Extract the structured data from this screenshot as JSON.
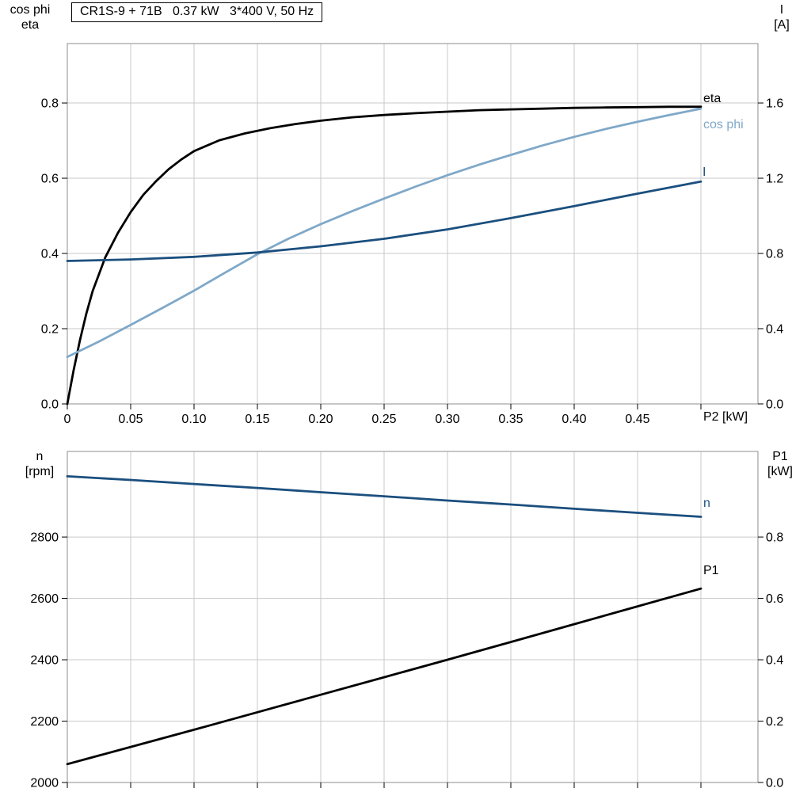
{
  "colors": {
    "black": "#000000",
    "dark_blue": "#1b4f7e",
    "light_blue": "#7fa8c8",
    "grid": "#c9c9c9",
    "frame": "#8c8c8c"
  },
  "chart_data": [
    {
      "type": "line",
      "title": "CR1S-9 + 71B   0.37 kW   3*400 V, 50 Hz",
      "xlabel": "P2 [kW]",
      "x": {
        "min": 0,
        "max": 0.545,
        "ticks": [
          {
            "v": 0,
            "t": "0"
          },
          {
            "v": 0.05,
            "t": "0.05"
          },
          {
            "v": 0.1,
            "t": "0.10"
          },
          {
            "v": 0.15,
            "t": "0.15"
          },
          {
            "v": 0.2,
            "t": "0.20"
          },
          {
            "v": 0.25,
            "t": "0.25"
          },
          {
            "v": 0.3,
            "t": "0.30"
          },
          {
            "v": 0.35,
            "t": "0.35"
          },
          {
            "v": 0.4,
            "t": "0.40"
          },
          {
            "v": 0.45,
            "t": "0.45"
          },
          {
            "v": 0.5,
            "t": ""
          }
        ]
      },
      "y_left": {
        "label_lines": [
          "cos phi",
          "eta"
        ],
        "min": 0,
        "max": 0.958,
        "ticks": [
          {
            "v": 0.0,
            "t": "0.0"
          },
          {
            "v": 0.2,
            "t": "0.2"
          },
          {
            "v": 0.4,
            "t": "0.4"
          },
          {
            "v": 0.6,
            "t": "0.6"
          },
          {
            "v": 0.8,
            "t": "0.8"
          }
        ]
      },
      "y_right": {
        "label_lines": [
          "I",
          "[A]"
        ],
        "min": 0,
        "max": 1.916,
        "ticks": [
          {
            "v": 0.0,
            "t": "0.0"
          },
          {
            "v": 0.4,
            "t": "0.4"
          },
          {
            "v": 0.8,
            "t": "0.8"
          },
          {
            "v": 1.2,
            "t": "1.2"
          },
          {
            "v": 1.6,
            "t": "1.6"
          }
        ]
      },
      "series": [
        {
          "name": "eta",
          "axis": "left",
          "color": "black",
          "points": [
            [
              0,
              0
            ],
            [
              0.005,
              0.09
            ],
            [
              0.01,
              0.17
            ],
            [
              0.015,
              0.24
            ],
            [
              0.02,
              0.3
            ],
            [
              0.03,
              0.39
            ],
            [
              0.04,
              0.455
            ],
            [
              0.05,
              0.51
            ],
            [
              0.06,
              0.556
            ],
            [
              0.07,
              0.592
            ],
            [
              0.08,
              0.624
            ],
            [
              0.09,
              0.65
            ],
            [
              0.1,
              0.672
            ],
            [
              0.12,
              0.701
            ],
            [
              0.14,
              0.719
            ],
            [
              0.16,
              0.733
            ],
            [
              0.18,
              0.744
            ],
            [
              0.2,
              0.753
            ],
            [
              0.225,
              0.762
            ],
            [
              0.25,
              0.768
            ],
            [
              0.275,
              0.773
            ],
            [
              0.3,
              0.777
            ],
            [
              0.325,
              0.781
            ],
            [
              0.35,
              0.783
            ],
            [
              0.375,
              0.785
            ],
            [
              0.4,
              0.787
            ],
            [
              0.425,
              0.788
            ],
            [
              0.45,
              0.789
            ],
            [
              0.475,
              0.79
            ],
            [
              0.5,
              0.79
            ]
          ]
        },
        {
          "name": "cos phi",
          "axis": "left",
          "color": "light_blue",
          "points": [
            [
              0,
              0.125
            ],
            [
              0.025,
              0.166
            ],
            [
              0.05,
              0.21
            ],
            [
              0.075,
              0.255
            ],
            [
              0.1,
              0.301
            ],
            [
              0.125,
              0.35
            ],
            [
              0.15,
              0.398
            ],
            [
              0.175,
              0.44
            ],
            [
              0.2,
              0.478
            ],
            [
              0.225,
              0.513
            ],
            [
              0.25,
              0.546
            ],
            [
              0.275,
              0.578
            ],
            [
              0.3,
              0.608
            ],
            [
              0.325,
              0.636
            ],
            [
              0.35,
              0.662
            ],
            [
              0.375,
              0.687
            ],
            [
              0.4,
              0.71
            ],
            [
              0.425,
              0.731
            ],
            [
              0.45,
              0.75
            ],
            [
              0.475,
              0.768
            ],
            [
              0.5,
              0.785
            ]
          ]
        },
        {
          "name": "I",
          "axis": "right",
          "color": "dark_blue",
          "points": [
            [
              0,
              0.76
            ],
            [
              0.05,
              0.768
            ],
            [
              0.1,
              0.782
            ],
            [
              0.15,
              0.805
            ],
            [
              0.2,
              0.838
            ],
            [
              0.25,
              0.878
            ],
            [
              0.3,
              0.928
            ],
            [
              0.35,
              0.988
            ],
            [
              0.4,
              1.052
            ],
            [
              0.45,
              1.118
            ],
            [
              0.5,
              1.182
            ]
          ]
        }
      ]
    },
    {
      "type": "line",
      "title": "",
      "xlabel": "",
      "x": {
        "min": 0,
        "max": 0.545,
        "ticks": [
          {
            "v": 0,
            "t": ""
          },
          {
            "v": 0.05,
            "t": ""
          },
          {
            "v": 0.1,
            "t": ""
          },
          {
            "v": 0.15,
            "t": ""
          },
          {
            "v": 0.2,
            "t": ""
          },
          {
            "v": 0.25,
            "t": ""
          },
          {
            "v": 0.3,
            "t": ""
          },
          {
            "v": 0.35,
            "t": ""
          },
          {
            "v": 0.4,
            "t": ""
          },
          {
            "v": 0.45,
            "t": ""
          },
          {
            "v": 0.5,
            "t": ""
          }
        ]
      },
      "y_left": {
        "label_lines": [
          "n",
          "[rpm]"
        ],
        "min": 2000,
        "max": 3079,
        "ticks": [
          {
            "v": 2000,
            "t": "2000"
          },
          {
            "v": 2200,
            "t": "2200"
          },
          {
            "v": 2400,
            "t": "2400"
          },
          {
            "v": 2600,
            "t": "2600"
          },
          {
            "v": 2800,
            "t": "2800"
          }
        ]
      },
      "y_right": {
        "label_lines": [
          "P1",
          "[kW]"
        ],
        "min": 0,
        "max": 1.079,
        "ticks": [
          {
            "v": 0.0,
            "t": "0.0"
          },
          {
            "v": 0.2,
            "t": "0.2"
          },
          {
            "v": 0.4,
            "t": "0.4"
          },
          {
            "v": 0.6,
            "t": "0.6"
          },
          {
            "v": 0.8,
            "t": "0.8"
          }
        ]
      },
      "series": [
        {
          "name": "n",
          "axis": "left",
          "color": "dark_blue",
          "points": [
            [
              0,
              2998
            ],
            [
              0.05,
              2986
            ],
            [
              0.1,
              2973
            ],
            [
              0.15,
              2960
            ],
            [
              0.2,
              2946
            ],
            [
              0.25,
              2933
            ],
            [
              0.3,
              2919
            ],
            [
              0.35,
              2906
            ],
            [
              0.4,
              2892
            ],
            [
              0.45,
              2879
            ],
            [
              0.5,
              2866
            ]
          ]
        },
        {
          "name": "P1",
          "axis": "left_p1",
          "color": "black",
          "points": [
            [
              0,
              0.06
            ],
            [
              0.05,
              0.116
            ],
            [
              0.1,
              0.172
            ],
            [
              0.15,
              0.229
            ],
            [
              0.2,
              0.286
            ],
            [
              0.25,
              0.343
            ],
            [
              0.3,
              0.4
            ],
            [
              0.35,
              0.458
            ],
            [
              0.4,
              0.516
            ],
            [
              0.45,
              0.574
            ],
            [
              0.5,
              0.632
            ]
          ]
        }
      ]
    }
  ]
}
